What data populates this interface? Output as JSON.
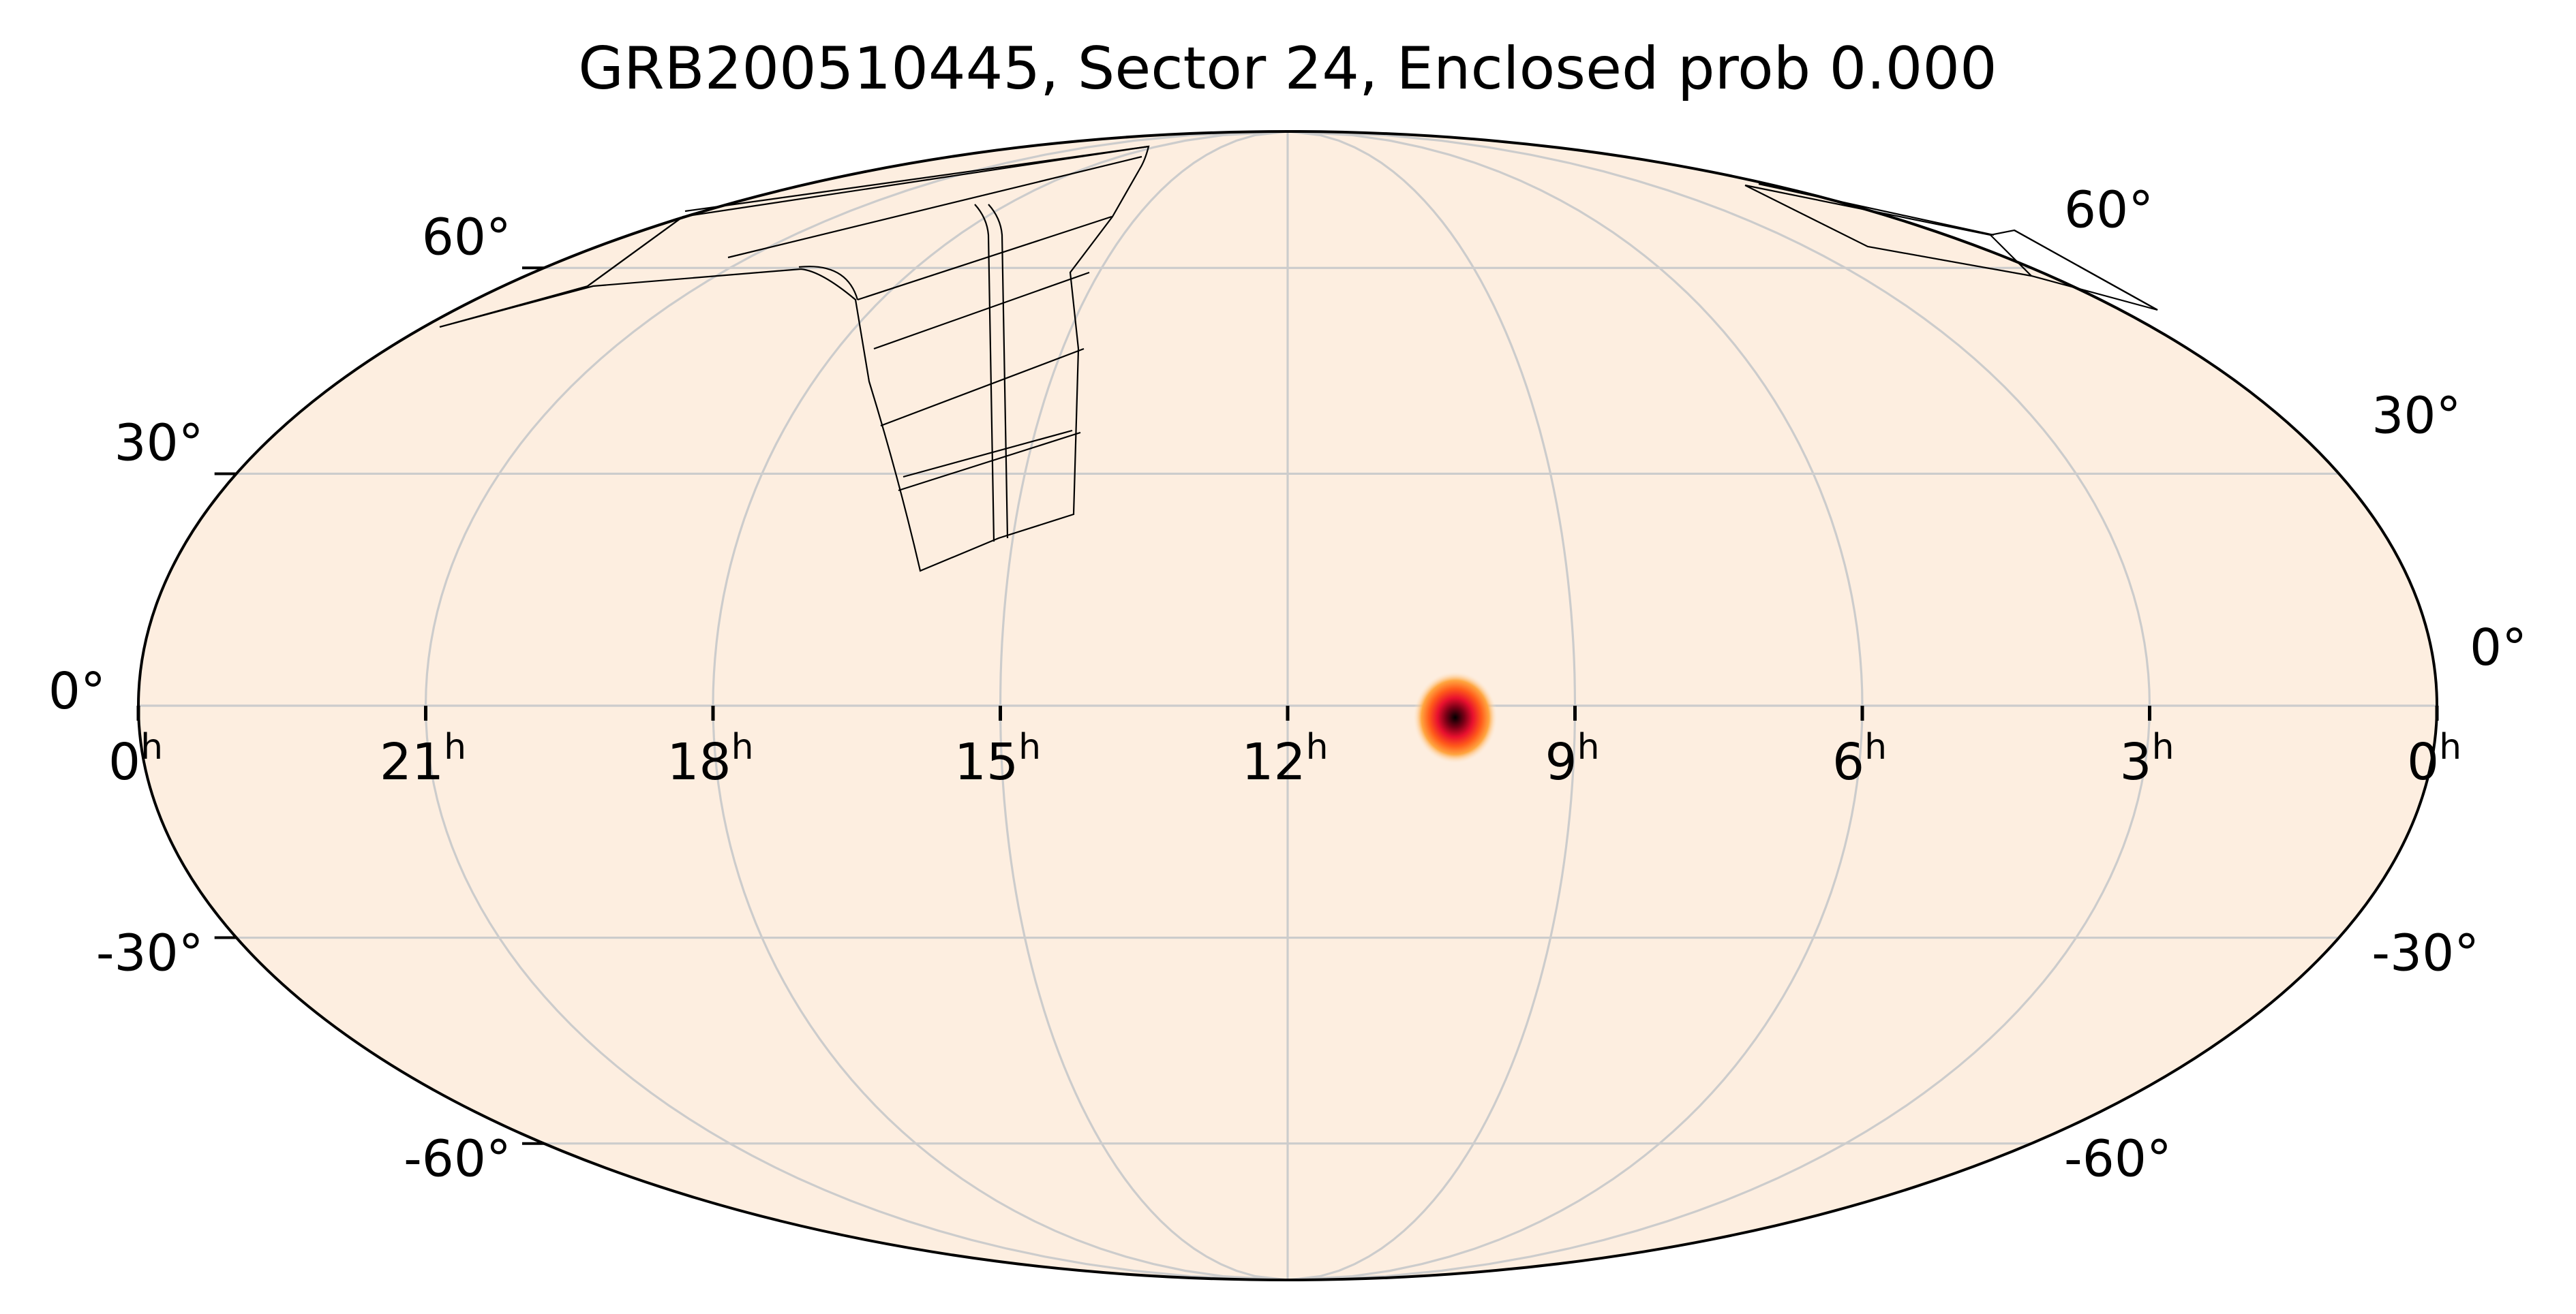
{
  "title": "GRB200510445, Sector 24, Enclosed prob 0.000",
  "ra_ticks": [
    {
      "ra_h": 24,
      "label": "0",
      "sup": "h"
    },
    {
      "ra_h": 21,
      "label": "21",
      "sup": "h"
    },
    {
      "ra_h": 18,
      "label": "18",
      "sup": "h"
    },
    {
      "ra_h": 15,
      "label": "15",
      "sup": "h"
    },
    {
      "ra_h": 12,
      "label": "12",
      "sup": "h"
    },
    {
      "ra_h": 9,
      "label": "9",
      "sup": "h"
    },
    {
      "ra_h": 6,
      "label": "6",
      "sup": "h"
    },
    {
      "ra_h": 3,
      "label": "3",
      "sup": "h"
    },
    {
      "ra_h": 0,
      "label": "0",
      "sup": "h"
    }
  ],
  "dec_ticks_left": [
    "60°",
    "30°",
    "0°",
    "-30°",
    "-60°"
  ],
  "dec_ticks_right": [
    "60°",
    "30°",
    "0°",
    "-30°",
    "-60°"
  ],
  "dec_values": [
    60,
    30,
    0,
    -30,
    -60
  ],
  "chart_data": {
    "type": "heatmap",
    "projection": "mollweide",
    "ra_axis_reversed": true,
    "grid": true,
    "localization": {
      "ra_h": 10.25,
      "dec_deg": -1.5,
      "colormap": "hot (reversed)"
    },
    "colors": {
      "background": "#fdeee0",
      "grid": "#cccccc",
      "outline": "#000000"
    }
  }
}
